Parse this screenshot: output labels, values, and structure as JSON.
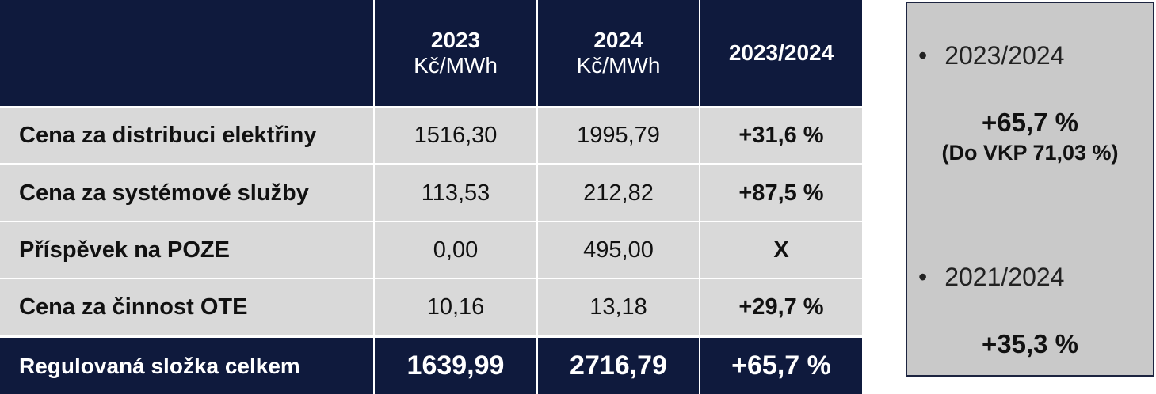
{
  "table": {
    "columns": [
      {
        "title": "2023",
        "unit": "Kč/MWh"
      },
      {
        "title": "2024",
        "unit": "Kč/MWh"
      },
      {
        "title": "2023/2024"
      }
    ],
    "rows": [
      [
        "Cena za distribuci elektřiny",
        "1516,30",
        "1995,79",
        "+31,6 %"
      ],
      [
        "Cena za systémové služby",
        "113,53",
        "212,82",
        "+87,5 %"
      ],
      [
        "Příspěvek na POZE",
        "0,00",
        "495,00",
        "X"
      ],
      [
        "Cena za činnost OTE",
        "10,16",
        "13,18",
        "+29,7 %"
      ]
    ],
    "total": [
      "Regulovaná složka celkem",
      "1639,99",
      "2716,79",
      "+65,7 %"
    ]
  },
  "side": {
    "items": [
      {
        "label": "2023/2024",
        "value": "+65,7 %",
        "note": "(Do VKP 71,03 %)"
      },
      {
        "label": "2021/2024",
        "value": "+35,3 %"
      }
    ]
  }
}
